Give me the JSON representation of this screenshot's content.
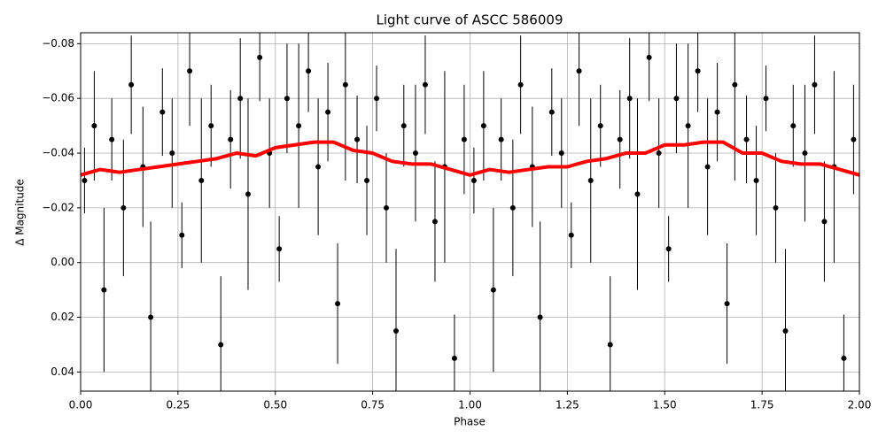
{
  "chart_data": {
    "type": "scatter",
    "title": "Light curve of ASCC 586009",
    "x_label": "Phase",
    "y_label": "Δ Magnitude",
    "xlim": [
      0,
      2
    ],
    "ylim": [
      -0.084,
      0.047
    ],
    "y_inverted": true,
    "grid": true,
    "xticks": [
      {
        "value": 0,
        "label": "0.00"
      },
      0.25,
      {
        "value": 0.5,
        "label": "0.50"
      },
      0.75,
      {
        "value": 1,
        "label": "1.00"
      },
      1.25,
      {
        "value": 1.5,
        "label": "1.50"
      },
      1.75,
      {
        "value": 2,
        "label": "2.00"
      }
    ],
    "yticks": [
      {
        "value": -0.08,
        "label": "−0.08"
      },
      {
        "value": -0.06,
        "label": "−0.06"
      },
      {
        "value": -0.04,
        "label": "−0.04"
      },
      {
        "value": -0.02,
        "label": "−0.02"
      },
      {
        "value": 0,
        "label": "0.00"
      },
      0.02,
      0.04
    ],
    "points": {
      "color": "#000000",
      "x": [
        0.01,
        0.035,
        0.06,
        0.08,
        0.11,
        0.13,
        0.16,
        0.18,
        0.21,
        0.235,
        0.26,
        0.28,
        0.31,
        0.335,
        0.36,
        0.385,
        0.41,
        0.43,
        0.46,
        0.485,
        0.51,
        0.53,
        0.56,
        0.585,
        0.61,
        0.635,
        0.66,
        0.68,
        0.71,
        0.735,
        0.76,
        0.785,
        0.81,
        0.83,
        0.86,
        0.885,
        0.91,
        0.935,
        0.96,
        0.985,
        1.01,
        1.035,
        1.06,
        1.08,
        1.11,
        1.13,
        1.16,
        1.18,
        1.21,
        1.235,
        1.26,
        1.28,
        1.31,
        1.335,
        1.36,
        1.385,
        1.41,
        1.43,
        1.46,
        1.485,
        1.51,
        1.53,
        1.56,
        1.585,
        1.61,
        1.635,
        1.66,
        1.68,
        1.71,
        1.735,
        1.76,
        1.785,
        1.81,
        1.83,
        1.86,
        1.885,
        1.91,
        1.935,
        1.96,
        1.985
      ],
      "values": [
        -0.03,
        -0.05,
        0.01,
        -0.045,
        -0.02,
        -0.065,
        -0.035,
        0.02,
        -0.055,
        -0.04,
        -0.01,
        -0.07,
        -0.03,
        -0.05,
        0.03,
        -0.045,
        -0.06,
        -0.025,
        -0.075,
        -0.04,
        -0.005,
        -0.06,
        -0.05,
        -0.07,
        -0.035,
        -0.055,
        0.015,
        -0.065,
        -0.045,
        -0.03,
        -0.06,
        -0.02,
        0.025,
        -0.05,
        -0.04,
        -0.065,
        -0.015,
        -0.035,
        0.035,
        -0.045,
        -0.03,
        -0.05,
        0.01,
        -0.045,
        -0.02,
        -0.065,
        -0.035,
        0.02,
        -0.055,
        -0.04,
        -0.01,
        -0.07,
        -0.03,
        -0.05,
        0.03,
        -0.045,
        -0.06,
        -0.025,
        -0.075,
        -0.04,
        -0.005,
        -0.06,
        -0.05,
        -0.07,
        -0.035,
        -0.055,
        0.015,
        -0.065,
        -0.045,
        -0.03,
        -0.06,
        -0.02,
        0.025,
        -0.05,
        -0.04,
        -0.065,
        -0.015,
        -0.035,
        0.035,
        -0.045
      ],
      "errors": [
        0.012,
        0.02,
        0.03,
        0.015,
        0.025,
        0.018,
        0.022,
        0.035,
        0.016,
        0.02,
        0.012,
        0.02,
        0.03,
        0.015,
        0.025,
        0.018,
        0.022,
        0.035,
        0.016,
        0.02,
        0.012,
        0.02,
        0.03,
        0.015,
        0.025,
        0.018,
        0.022,
        0.035,
        0.016,
        0.02,
        0.012,
        0.02,
        0.03,
        0.015,
        0.025,
        0.018,
        0.022,
        0.035,
        0.016,
        0.02,
        0.012,
        0.02,
        0.03,
        0.015,
        0.025,
        0.018,
        0.022,
        0.035,
        0.016,
        0.02,
        0.012,
        0.02,
        0.03,
        0.015,
        0.025,
        0.018,
        0.022,
        0.035,
        0.016,
        0.02,
        0.012,
        0.02,
        0.03,
        0.015,
        0.025,
        0.018,
        0.022,
        0.035,
        0.016,
        0.02,
        0.012,
        0.02,
        0.03,
        0.015,
        0.025,
        0.018,
        0.022,
        0.035,
        0.016,
        0.02
      ]
    },
    "smoothed": {
      "color": "#ff0000",
      "x": [
        0,
        0.05,
        0.1,
        0.15,
        0.2,
        0.25,
        0.3,
        0.35,
        0.4,
        0.45,
        0.5,
        0.55,
        0.6,
        0.65,
        0.7,
        0.75,
        0.8,
        0.85,
        0.9,
        0.95,
        1,
        1.05,
        1.1,
        1.15,
        1.2,
        1.25,
        1.3,
        1.35,
        1.4,
        1.45,
        1.5,
        1.55,
        1.6,
        1.65,
        1.7,
        1.75,
        1.8,
        1.85,
        1.9,
        1.95,
        2
      ],
      "values": [
        -0.032,
        -0.034,
        -0.033,
        -0.034,
        -0.035,
        -0.036,
        -0.037,
        -0.038,
        -0.04,
        -0.039,
        -0.042,
        -0.043,
        -0.044,
        -0.044,
        -0.041,
        -0.04,
        -0.037,
        -0.036,
        -0.036,
        -0.034,
        -0.032,
        -0.034,
        -0.033,
        -0.034,
        -0.035,
        -0.035,
        -0.037,
        -0.038,
        -0.04,
        -0.04,
        -0.043,
        -0.043,
        -0.044,
        -0.044,
        -0.04,
        -0.04,
        -0.037,
        -0.036,
        -0.036,
        -0.034,
        -0.032
      ]
    }
  }
}
